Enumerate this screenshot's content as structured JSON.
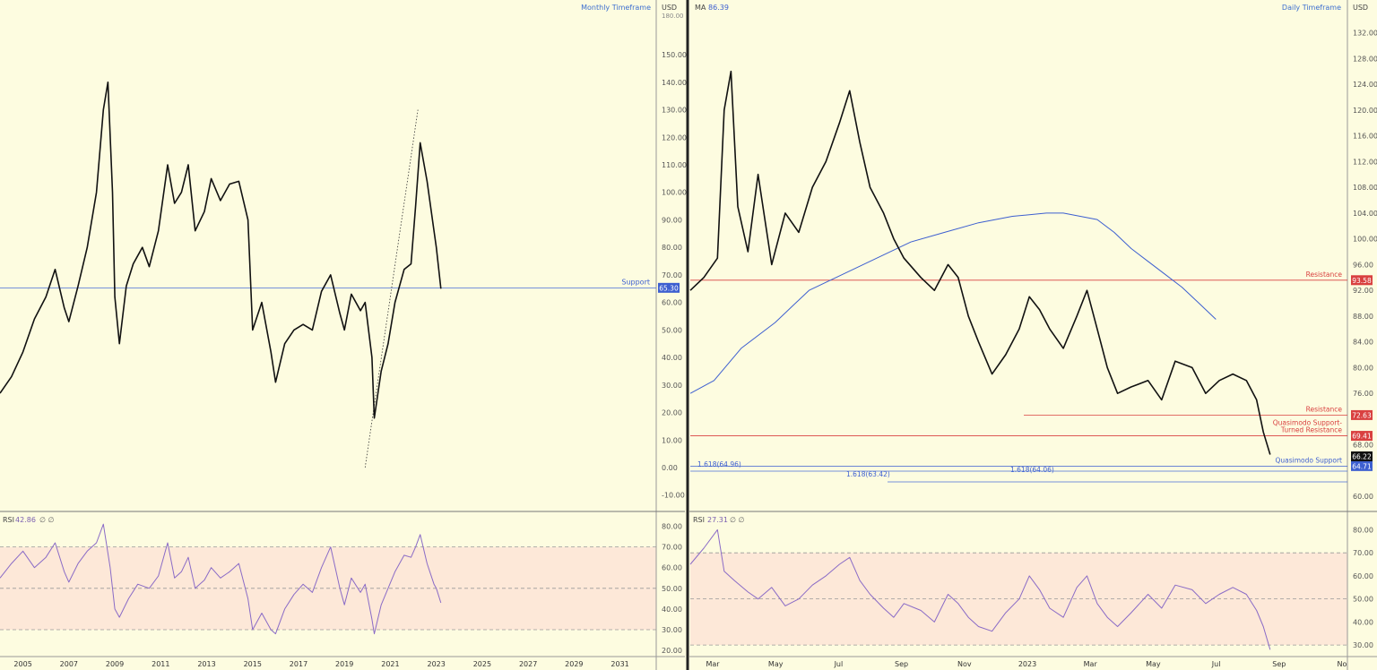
{
  "chart_data": [
    {
      "panel": "left-price",
      "type": "line",
      "title": "Monthly Timeframe",
      "unit_label": "USD",
      "x_ticks": [
        "2005",
        "2007",
        "2009",
        "2011",
        "2013",
        "2015",
        "2017",
        "2019",
        "2021",
        "2023",
        "2025",
        "2027",
        "2029",
        "2031"
      ],
      "xlim": [
        2004,
        2032.5
      ],
      "y_ticks": [
        "150.00",
        "140.00",
        "130.00",
        "120.00",
        "110.00",
        "100.00",
        "90.00",
        "80.00",
        "70.00",
        "60.00",
        "50.00",
        "40.00",
        "30.00",
        "20.00",
        "10.00",
        "0.00",
        "-10.00"
      ],
      "y_top_label": "180.00",
      "ylim": [
        -14,
        165
      ],
      "series": [
        {
          "values": [
            [
              2004.0,
              27
            ],
            [
              2004.5,
              33
            ],
            [
              2005.0,
              42
            ],
            [
              2005.5,
              54
            ],
            [
              2006.0,
              62
            ],
            [
              2006.4,
              72
            ],
            [
              2006.8,
              58
            ],
            [
              2007.0,
              53
            ],
            [
              2007.4,
              66
            ],
            [
              2007.8,
              80
            ],
            [
              2008.2,
              100
            ],
            [
              2008.5,
              130
            ],
            [
              2008.7,
              140
            ],
            [
              2008.9,
              100
            ],
            [
              2009.0,
              62
            ],
            [
              2009.2,
              45
            ],
            [
              2009.5,
              66
            ],
            [
              2009.8,
              74
            ],
            [
              2010.2,
              80
            ],
            [
              2010.5,
              73
            ],
            [
              2010.9,
              86
            ],
            [
              2011.3,
              110
            ],
            [
              2011.6,
              96
            ],
            [
              2011.9,
              100
            ],
            [
              2012.2,
              110
            ],
            [
              2012.5,
              86
            ],
            [
              2012.9,
              93
            ],
            [
              2013.2,
              105
            ],
            [
              2013.6,
              97
            ],
            [
              2014.0,
              103
            ],
            [
              2014.4,
              104
            ],
            [
              2014.8,
              90
            ],
            [
              2015.0,
              50
            ],
            [
              2015.4,
              60
            ],
            [
              2015.8,
              42
            ],
            [
              2016.0,
              31
            ],
            [
              2016.4,
              45
            ],
            [
              2016.8,
              50
            ],
            [
              2017.2,
              52
            ],
            [
              2017.6,
              50
            ],
            [
              2018.0,
              64
            ],
            [
              2018.4,
              70
            ],
            [
              2018.8,
              56
            ],
            [
              2019.0,
              50
            ],
            [
              2019.3,
              63
            ],
            [
              2019.7,
              57
            ],
            [
              2019.9,
              60
            ],
            [
              2020.2,
              40
            ],
            [
              2020.3,
              18
            ],
            [
              2020.6,
              35
            ],
            [
              2020.9,
              45
            ],
            [
              2021.2,
              60
            ],
            [
              2021.6,
              72
            ],
            [
              2021.9,
              74
            ],
            [
              2022.1,
              95
            ],
            [
              2022.3,
              118
            ],
            [
              2022.6,
              104
            ],
            [
              2022.9,
              86
            ],
            [
              2023.0,
              80
            ],
            [
              2023.2,
              65
            ]
          ]
        }
      ],
      "support_line": {
        "value": 65.3,
        "label": "Support",
        "tag": "65.30"
      },
      "dotted_extension": {
        "from": [
          2019.9,
          0
        ],
        "to": [
          2022.2,
          130
        ]
      }
    },
    {
      "panel": "left-rsi",
      "type": "line",
      "indicator": "RSI",
      "header_value": "42.86",
      "header_extra": "∅ ∅",
      "y_ticks": [
        "80.00",
        "70.00",
        "60.00",
        "50.00",
        "40.00",
        "30.00",
        "20.00"
      ],
      "ylim": [
        17,
        85
      ],
      "bands": {
        "upper": 70,
        "mid": 50,
        "lower": 30
      },
      "series": [
        {
          "values": [
            [
              2004.0,
              55
            ],
            [
              2004.5,
              62
            ],
            [
              2005.0,
              68
            ],
            [
              2005.5,
              60
            ],
            [
              2006.0,
              65
            ],
            [
              2006.4,
              72
            ],
            [
              2006.8,
              58
            ],
            [
              2007.0,
              53
            ],
            [
              2007.4,
              62
            ],
            [
              2007.8,
              68
            ],
            [
              2008.2,
              72
            ],
            [
              2008.5,
              81
            ],
            [
              2008.8,
              60
            ],
            [
              2009.0,
              40
            ],
            [
              2009.2,
              36
            ],
            [
              2009.6,
              45
            ],
            [
              2010.0,
              52
            ],
            [
              2010.5,
              50
            ],
            [
              2010.9,
              56
            ],
            [
              2011.3,
              72
            ],
            [
              2011.6,
              55
            ],
            [
              2011.9,
              58
            ],
            [
              2012.2,
              65
            ],
            [
              2012.5,
              50
            ],
            [
              2012.9,
              54
            ],
            [
              2013.2,
              60
            ],
            [
              2013.6,
              55
            ],
            [
              2014.0,
              58
            ],
            [
              2014.4,
              62
            ],
            [
              2014.8,
              45
            ],
            [
              2015.0,
              30
            ],
            [
              2015.4,
              38
            ],
            [
              2015.8,
              30
            ],
            [
              2016.0,
              28
            ],
            [
              2016.4,
              40
            ],
            [
              2016.8,
              47
            ],
            [
              2017.2,
              52
            ],
            [
              2017.6,
              48
            ],
            [
              2018.0,
              60
            ],
            [
              2018.4,
              70
            ],
            [
              2018.8,
              50
            ],
            [
              2019.0,
              42
            ],
            [
              2019.3,
              55
            ],
            [
              2019.7,
              48
            ],
            [
              2019.9,
              52
            ],
            [
              2020.2,
              35
            ],
            [
              2020.3,
              28
            ],
            [
              2020.6,
              42
            ],
            [
              2020.9,
              50
            ],
            [
              2021.2,
              58
            ],
            [
              2021.6,
              66
            ],
            [
              2021.9,
              65
            ],
            [
              2022.1,
              70
            ],
            [
              2022.3,
              76
            ],
            [
              2022.6,
              62
            ],
            [
              2022.9,
              52
            ],
            [
              2023.0,
              50
            ],
            [
              2023.2,
              43
            ]
          ]
        }
      ]
    },
    {
      "panel": "right-price",
      "type": "line",
      "title": "Daily Timeframe",
      "unit_label": "USD",
      "ma_label": "MA",
      "ma_value": "86.39",
      "x_ticks": [
        "Mar",
        "May",
        "Jul",
        "Sep",
        "Nov",
        "2023",
        "Mar",
        "May",
        "Jul",
        "Sep",
        "No"
      ],
      "xlim": [
        0,
        19.3
      ],
      "y_ticks": [
        "132.00",
        "128.00",
        "124.00",
        "120.00",
        "116.00",
        "112.00",
        "108.00",
        "104.00",
        "100.00",
        "96.00",
        "92.00",
        "88.00",
        "84.00",
        "80.00",
        "76.00",
        "68.00",
        "60.00"
      ],
      "ylim": [
        58.5,
        135
      ],
      "series": [
        {
          "name": "price",
          "values": [
            [
              0.0,
              92
            ],
            [
              0.4,
              94
            ],
            [
              0.8,
              97
            ],
            [
              1.0,
              120
            ],
            [
              1.2,
              126
            ],
            [
              1.4,
              105
            ],
            [
              1.7,
              98
            ],
            [
              2.0,
              110
            ],
            [
              2.4,
              96
            ],
            [
              2.8,
              104
            ],
            [
              3.2,
              101
            ],
            [
              3.6,
              108
            ],
            [
              4.0,
              112
            ],
            [
              4.4,
              118
            ],
            [
              4.7,
              123
            ],
            [
              5.0,
              115
            ],
            [
              5.3,
              108
            ],
            [
              5.7,
              104
            ],
            [
              6.0,
              100
            ],
            [
              6.3,
              97
            ],
            [
              6.8,
              94
            ],
            [
              7.2,
              92
            ],
            [
              7.6,
              96
            ],
            [
              7.9,
              94
            ],
            [
              8.2,
              88
            ],
            [
              8.5,
              84
            ],
            [
              8.9,
              79
            ],
            [
              9.3,
              82
            ],
            [
              9.7,
              86
            ],
            [
              10.0,
              91
            ],
            [
              10.3,
              89
            ],
            [
              10.6,
              86
            ],
            [
              11.0,
              83
            ],
            [
              11.4,
              88
            ],
            [
              11.7,
              92
            ],
            [
              12.0,
              86
            ],
            [
              12.3,
              80
            ],
            [
              12.6,
              76
            ],
            [
              13.0,
              77
            ],
            [
              13.5,
              78
            ],
            [
              13.9,
              75
            ],
            [
              14.3,
              81
            ],
            [
              14.8,
              80
            ],
            [
              15.2,
              76
            ],
            [
              15.6,
              78
            ],
            [
              16.0,
              79
            ],
            [
              16.4,
              78
            ],
            [
              16.7,
              75
            ],
            [
              16.9,
              70
            ],
            [
              17.1,
              66.5
            ]
          ]
        },
        {
          "name": "MA",
          "values": [
            [
              0.0,
              76
            ],
            [
              0.7,
              78
            ],
            [
              1.5,
              83
            ],
            [
              2.5,
              87
            ],
            [
              3.5,
              92
            ],
            [
              4.5,
              94.5
            ],
            [
              5.5,
              97
            ],
            [
              6.5,
              99.5
            ],
            [
              7.5,
              101
            ],
            [
              8.5,
              102.5
            ],
            [
              9.5,
              103.5
            ],
            [
              10.5,
              104
            ],
            [
              11.0,
              104
            ],
            [
              11.5,
              103.5
            ],
            [
              12.0,
              103
            ],
            [
              12.5,
              101
            ],
            [
              13.0,
              98.5
            ],
            [
              13.5,
              96.5
            ],
            [
              14.0,
              94.5
            ],
            [
              14.5,
              92.5
            ],
            [
              15.0,
              90
            ],
            [
              15.5,
              87.5
            ]
          ]
        }
      ],
      "levels": [
        {
          "value": 93.58,
          "label": "Resistance",
          "tag": "93.58",
          "color": "#d94040"
        },
        {
          "value": 72.63,
          "label": "Resistance",
          "tag": "72.63",
          "color": "#d94040"
        },
        {
          "value": 69.41,
          "label": "Quasimodo Support-\nTurned Resistance",
          "tag": "69.41",
          "color": "#d94040"
        },
        {
          "value": 64.71,
          "label": "Quasimodo Support",
          "tag": "64.71",
          "color": "#3d5fd0"
        }
      ],
      "current_price": {
        "value": 66.22,
        "tag": "66.22"
      },
      "fib_labels": [
        "1.618(64.96)",
        "1.618(63.42)",
        "1.618(64.06)"
      ]
    },
    {
      "panel": "right-rsi",
      "type": "line",
      "indicator": "RSI",
      "header_value": "27.31",
      "header_extra": "∅ ∅",
      "y_ticks": [
        "80.00",
        "70.00",
        "60.00",
        "50.00",
        "40.00",
        "30.00"
      ],
      "ylim": [
        25,
        86
      ],
      "bands": {
        "upper": 70,
        "mid": 50,
        "lower": 30
      },
      "series": [
        {
          "values": [
            [
              0.0,
              65
            ],
            [
              0.4,
              72
            ],
            [
              0.8,
              80
            ],
            [
              1.0,
              62
            ],
            [
              1.3,
              58
            ],
            [
              1.7,
              53
            ],
            [
              2.0,
              50
            ],
            [
              2.4,
              55
            ],
            [
              2.8,
              47
            ],
            [
              3.2,
              50
            ],
            [
              3.6,
              56
            ],
            [
              4.0,
              60
            ],
            [
              4.4,
              65
            ],
            [
              4.7,
              68
            ],
            [
              5.0,
              58
            ],
            [
              5.3,
              52
            ],
            [
              5.7,
              46
            ],
            [
              6.0,
              42
            ],
            [
              6.3,
              48
            ],
            [
              6.8,
              45
            ],
            [
              7.2,
              40
            ],
            [
              7.6,
              52
            ],
            [
              7.9,
              48
            ],
            [
              8.2,
              42
            ],
            [
              8.5,
              38
            ],
            [
              8.9,
              36
            ],
            [
              9.3,
              44
            ],
            [
              9.7,
              50
            ],
            [
              10.0,
              60
            ],
            [
              10.3,
              54
            ],
            [
              10.6,
              46
            ],
            [
              11.0,
              42
            ],
            [
              11.4,
              55
            ],
            [
              11.7,
              60
            ],
            [
              12.0,
              48
            ],
            [
              12.3,
              42
            ],
            [
              12.6,
              38
            ],
            [
              13.0,
              44
            ],
            [
              13.5,
              52
            ],
            [
              13.9,
              46
            ],
            [
              14.3,
              56
            ],
            [
              14.8,
              54
            ],
            [
              15.2,
              48
            ],
            [
              15.6,
              52
            ],
            [
              16.0,
              55
            ],
            [
              16.4,
              52
            ],
            [
              16.7,
              45
            ],
            [
              16.9,
              38
            ],
            [
              17.1,
              28
            ]
          ]
        }
      ]
    }
  ]
}
